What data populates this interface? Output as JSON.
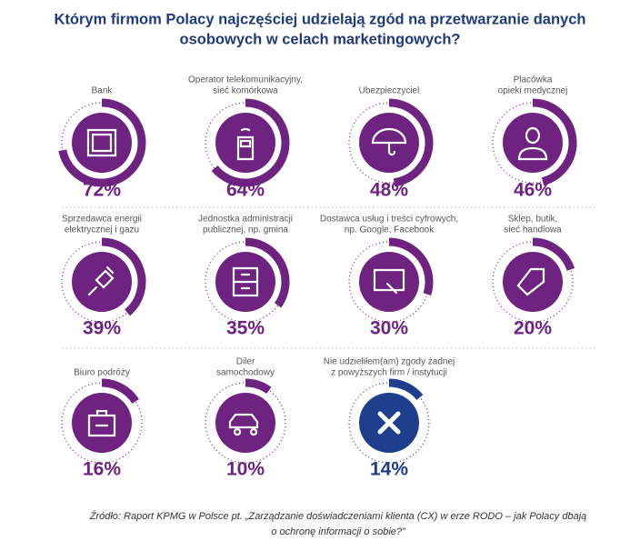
{
  "chart_data": {
    "type": "radial",
    "title": [
      "Którym firmom Polacy najczęściej udzielają zgód na przetwarzanie danych",
      "osobowych w celach marketingowych?"
    ],
    "categories": [
      [
        "Bank"
      ],
      [
        "Operator telekomunikacyjny,",
        "sieć komórkowa"
      ],
      [
        "Ubezpieczyciel"
      ],
      [
        "Placówka",
        "opieki medycznej"
      ],
      [
        "Sprzedawca energii",
        "elektrycznej i gazu"
      ],
      [
        "Jednostka administracji",
        "publicznej, np. gmina"
      ],
      [
        "Dostawca usług i treści cyfrowych,",
        "np. Google, Facebook"
      ],
      [
        "Sklep, butik,",
        "sieć handlowa"
      ],
      [
        "Biuro podróży"
      ],
      [
        "Diler",
        "samochodowy"
      ],
      [
        "Nie udzieliłem(am) zgody żadnej",
        "z powyższych firm / instytucji"
      ]
    ],
    "values": [
      72,
      64,
      48,
      46,
      39,
      35,
      30,
      20,
      16,
      10,
      14
    ],
    "value_labels": [
      "72%",
      "64%",
      "48%",
      "46%",
      "39%",
      "35%",
      "30%",
      "20%",
      "16%",
      "10%",
      "14%"
    ],
    "colors": [
      "#6e2380",
      "#6e2380",
      "#6e2380",
      "#6e2380",
      "#6e2380",
      "#6e2380",
      "#6e2380",
      "#6e2380",
      "#6e2380",
      "#6e2380",
      "#1f3f8c"
    ],
    "ylim": [
      0,
      100
    ],
    "source": [
      "Źródło: Raport KPMG w Polsce pt. „Zarządzanie doświadczeniami klienta (CX) w erze RODO – jak Polacy dbają",
      "o ochronę informacji o sobie?”"
    ]
  }
}
